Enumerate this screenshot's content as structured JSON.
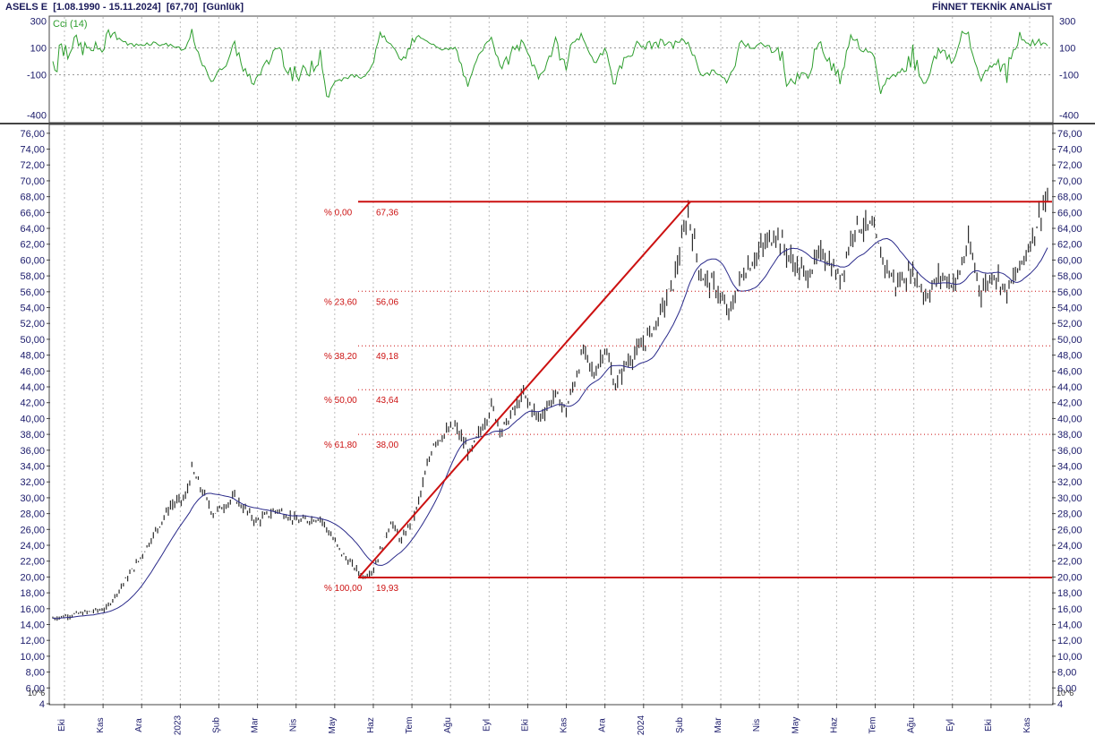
{
  "header": {
    "symbol": "ASELS E",
    "range": "[1.08.1990 - 15.11.2024]",
    "last": "[67,70]",
    "period": "[Günlük]",
    "brand": "FİNNET TEKNİK ANALİST"
  },
  "chart_data": [
    {
      "type": "line",
      "panel": "indicator",
      "title": "Cci (14)",
      "y_ticks": [
        300,
        100,
        -100,
        -400
      ],
      "ylim": [
        -450,
        330
      ],
      "reference_lines": [
        100,
        -100
      ],
      "color": "#2e9e2e"
    },
    {
      "type": "candlestick",
      "panel": "price",
      "title": "ASELS E",
      "ylim": [
        4,
        77
      ],
      "y_ticks": [
        "76,00",
        "74,00",
        "72,00",
        "70,00",
        "68,00",
        "66,00",
        "64,00",
        "62,00",
        "60,00",
        "58,00",
        "56,00",
        "54,00",
        "52,00",
        "50,00",
        "48,00",
        "46,00",
        "44,00",
        "42,00",
        "40,00",
        "38,00",
        "36,00",
        "34,00",
        "32,00",
        "30,00",
        "28,00",
        "26,00",
        "24,00",
        "22,00",
        "20,00",
        "18,00",
        "16,00",
        "14,00",
        "12,00",
        "10,00",
        "8,00",
        "6,00",
        "4"
      ],
      "x_ticks": [
        "Eki",
        "Kas",
        "Ara",
        "2023",
        "Şub",
        "Mar",
        "Nis",
        "May",
        "Haz",
        "Tem",
        "Ağu",
        "Eyl",
        "Eki",
        "Kas",
        "Ara",
        "2024",
        "Şub",
        "Mar",
        "Nis",
        "May",
        "Haz",
        "Tem",
        "Ağu",
        "Eyl",
        "Eki",
        "Kas"
      ],
      "scale_note": "10^6",
      "anchors": [
        {
          "i": 0,
          "v": 14.8
        },
        {
          "i": 15,
          "v": 15.5
        },
        {
          "i": 25,
          "v": 16.0
        },
        {
          "i": 40,
          "v": 22.0
        },
        {
          "i": 55,
          "v": 29.0
        },
        {
          "i": 62,
          "v": 30.0
        },
        {
          "i": 65,
          "v": 33.5
        },
        {
          "i": 75,
          "v": 28.0
        },
        {
          "i": 85,
          "v": 30.0
        },
        {
          "i": 95,
          "v": 27.0
        },
        {
          "i": 105,
          "v": 28.5
        },
        {
          "i": 115,
          "v": 27.0
        },
        {
          "i": 125,
          "v": 27.5
        },
        {
          "i": 135,
          "v": 23.0
        },
        {
          "i": 145,
          "v": 20.0
        },
        {
          "i": 150,
          "v": 21.0
        },
        {
          "i": 158,
          "v": 27.0
        },
        {
          "i": 163,
          "v": 24.5
        },
        {
          "i": 170,
          "v": 28.5
        },
        {
          "i": 178,
          "v": 37.0
        },
        {
          "i": 188,
          "v": 39.0
        },
        {
          "i": 195,
          "v": 35.5
        },
        {
          "i": 205,
          "v": 41.5
        },
        {
          "i": 210,
          "v": 38.5
        },
        {
          "i": 220,
          "v": 43.0
        },
        {
          "i": 227,
          "v": 40.0
        },
        {
          "i": 235,
          "v": 43.0
        },
        {
          "i": 240,
          "v": 41.0
        },
        {
          "i": 248,
          "v": 48.5
        },
        {
          "i": 253,
          "v": 45.5
        },
        {
          "i": 258,
          "v": 49.0
        },
        {
          "i": 263,
          "v": 44.0
        },
        {
          "i": 268,
          "v": 47.0
        },
        {
          "i": 275,
          "v": 49.0
        },
        {
          "i": 282,
          "v": 52.0
        },
        {
          "i": 290,
          "v": 57.0
        },
        {
          "i": 297,
          "v": 66.0
        },
        {
          "i": 303,
          "v": 58.0
        },
        {
          "i": 310,
          "v": 56.5
        },
        {
          "i": 316,
          "v": 53.0
        },
        {
          "i": 322,
          "v": 58.0
        },
        {
          "i": 330,
          "v": 61.0
        },
        {
          "i": 338,
          "v": 63.5
        },
        {
          "i": 345,
          "v": 60.0
        },
        {
          "i": 352,
          "v": 58.0
        },
        {
          "i": 360,
          "v": 61.0
        },
        {
          "i": 368,
          "v": 57.5
        },
        {
          "i": 375,
          "v": 64.5
        },
        {
          "i": 383,
          "v": 64.0
        },
        {
          "i": 388,
          "v": 60.0
        },
        {
          "i": 394,
          "v": 57.0
        },
        {
          "i": 402,
          "v": 58.5
        },
        {
          "i": 408,
          "v": 55.5
        },
        {
          "i": 415,
          "v": 58.0
        },
        {
          "i": 422,
          "v": 57.0
        },
        {
          "i": 428,
          "v": 62.0
        },
        {
          "i": 434,
          "v": 56.0
        },
        {
          "i": 440,
          "v": 58.5
        },
        {
          "i": 446,
          "v": 56.0
        },
        {
          "i": 452,
          "v": 59.0
        },
        {
          "i": 458,
          "v": 63.0
        },
        {
          "i": 464,
          "v": 67.7
        }
      ],
      "fibonacci": [
        {
          "pct": "% 0,00",
          "value": "67,36",
          "v": 67.36
        },
        {
          "pct": "% 23,60",
          "value": "56,06",
          "v": 56.06
        },
        {
          "pct": "% 38,20",
          "value": "49,18",
          "v": 49.18
        },
        {
          "pct": "% 50,00",
          "value": "43,64",
          "v": 43.64
        },
        {
          "pct": "% 61,80",
          "value": "38,00",
          "v": 38.0
        },
        {
          "pct": "% 100,00",
          "value": "19,93",
          "v": 19.93
        }
      ],
      "trendline": {
        "from": {
          "i": 143,
          "v": 19.93
        },
        "to": {
          "i": 298,
          "v": 67.36
        }
      },
      "moving_average": {
        "color": "#2a2a8a"
      },
      "bar_color": "#2b2b2b",
      "fib_color": "#cc1111"
    }
  ]
}
